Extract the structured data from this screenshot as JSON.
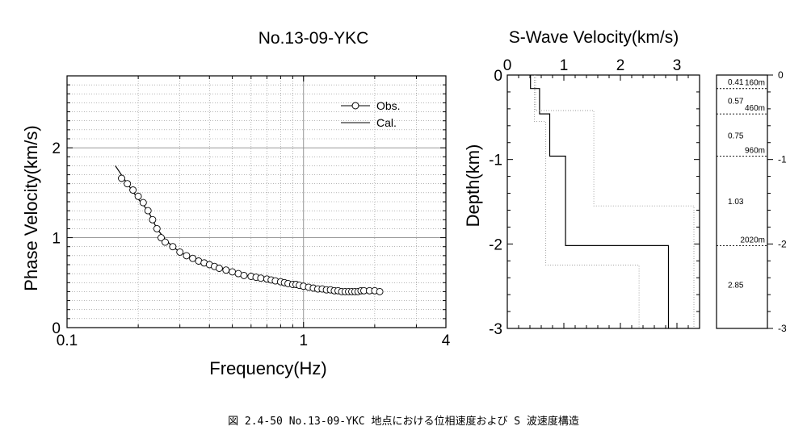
{
  "chart_data": [
    {
      "type": "scatter",
      "title": "No.13-09-YKC",
      "xlabel": "Frequency(Hz)",
      "ylabel": "Phase Velocity(km/s)",
      "xscale": "log",
      "xlim": [
        0.1,
        4
      ],
      "ylim": [
        0,
        2.8
      ],
      "xticks": [
        "0.1",
        "1",
        "4"
      ],
      "yticks": [
        "0",
        "1",
        "2"
      ],
      "legend_position": "top-right",
      "series": [
        {
          "name": "Obs.",
          "marker": "open-circle",
          "x": [
            0.17,
            0.18,
            0.19,
            0.2,
            0.21,
            0.22,
            0.23,
            0.24,
            0.25,
            0.26,
            0.28,
            0.3,
            0.32,
            0.34,
            0.36,
            0.38,
            0.4,
            0.42,
            0.44,
            0.47,
            0.5,
            0.53,
            0.56,
            0.6,
            0.63,
            0.66,
            0.7,
            0.73,
            0.76,
            0.8,
            0.83,
            0.86,
            0.9,
            0.93,
            0.96,
            1.0,
            1.05,
            1.1,
            1.15,
            1.2,
            1.25,
            1.3,
            1.35,
            1.4,
            1.45,
            1.5,
            1.55,
            1.6,
            1.65,
            1.7,
            1.75,
            1.8,
            1.9,
            2.0,
            2.1
          ],
          "y": [
            1.66,
            1.6,
            1.53,
            1.46,
            1.39,
            1.3,
            1.2,
            1.1,
            1.0,
            0.95,
            0.9,
            0.84,
            0.8,
            0.77,
            0.74,
            0.72,
            0.7,
            0.68,
            0.66,
            0.64,
            0.62,
            0.6,
            0.58,
            0.57,
            0.56,
            0.55,
            0.54,
            0.53,
            0.52,
            0.51,
            0.5,
            0.49,
            0.48,
            0.48,
            0.47,
            0.46,
            0.45,
            0.44,
            0.43,
            0.43,
            0.42,
            0.42,
            0.41,
            0.41,
            0.4,
            0.4,
            0.4,
            0.4,
            0.4,
            0.4,
            0.41,
            0.41,
            0.41,
            0.41,
            0.4
          ]
        },
        {
          "name": "Cal.",
          "marker": "line",
          "x": [
            0.16,
            0.18,
            0.2,
            0.22,
            0.24,
            0.26,
            0.28,
            0.3,
            0.33,
            0.36,
            0.4,
            0.45,
            0.5,
            0.6,
            0.7,
            0.8,
            0.9,
            1.0,
            1.2,
            1.4,
            1.6,
            1.8,
            2.0
          ],
          "y": [
            1.8,
            1.6,
            1.43,
            1.3,
            1.1,
            0.98,
            0.9,
            0.84,
            0.78,
            0.74,
            0.7,
            0.66,
            0.62,
            0.57,
            0.54,
            0.51,
            0.49,
            0.47,
            0.44,
            0.42,
            0.41,
            0.4,
            0.4
          ]
        }
      ]
    },
    {
      "type": "line",
      "title": "S-Wave Velocity(km/s)",
      "xlabel": "",
      "ylabel": "Depth(km)",
      "xlim": [
        0,
        3.4
      ],
      "ylim": [
        -3,
        0
      ],
      "xticks": [
        "0",
        "1",
        "2",
        "3"
      ],
      "yticks": [
        "0",
        "-1",
        "-2",
        "-3"
      ],
      "x_axis_position": "top",
      "series": [
        {
          "style": "solid",
          "depth_km": [
            0,
            -0.16,
            -0.16,
            -0.46,
            -0.46,
            -0.96,
            -0.96,
            -2.02,
            -2.02,
            -3.0
          ],
          "velocity_km_s": [
            0.41,
            0.41,
            0.57,
            0.57,
            0.75,
            0.75,
            1.03,
            1.03,
            2.85,
            2.85
          ]
        },
        {
          "style": "dotted-upper",
          "depth_km": [
            0,
            -0.42,
            -0.42,
            -1.55,
            -1.55,
            -3.0
          ],
          "velocity_km_s": [
            0.5,
            0.5,
            1.53,
            1.53,
            3.3,
            3.3
          ]
        },
        {
          "style": "dotted-lower",
          "depth_km": [
            0,
            -0.55,
            -0.55,
            -2.25,
            -2.25,
            -3.0
          ],
          "velocity_km_s": [
            0.48,
            0.48,
            0.68,
            0.68,
            2.33,
            2.33
          ]
        }
      ]
    },
    {
      "type": "table",
      "title": "",
      "yticks": [
        "0",
        "-1",
        "-2",
        "-3"
      ],
      "layers": [
        {
          "velocity": "0.41",
          "bottom_depth_km": 0.16,
          "bottom_label": "160m"
        },
        {
          "velocity": "0.57",
          "bottom_depth_km": 0.46,
          "bottom_label": "460m"
        },
        {
          "velocity": "0.75",
          "bottom_depth_km": 0.96,
          "bottom_label": "960m"
        },
        {
          "velocity": "1.03",
          "bottom_depth_km": 2.02,
          "bottom_label": "2020m"
        },
        {
          "velocity": "2.85",
          "bottom_depth_km": null,
          "bottom_label": ""
        }
      ]
    }
  ],
  "caption": "図 2.4-50 No.13-09-YKC 地点における位相速度および S 波速度構造",
  "colors": {
    "velocity_text": "#2a2a8c",
    "axis": "#000000",
    "grid": "#8a8a8a"
  }
}
